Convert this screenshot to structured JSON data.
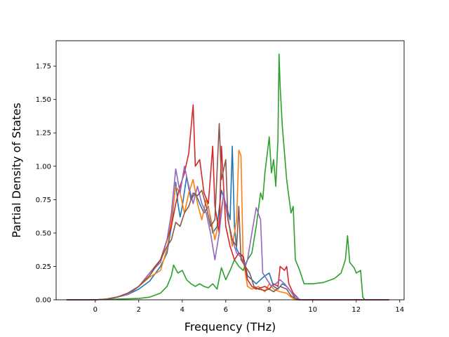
{
  "chart_data": {
    "type": "line",
    "title": "",
    "xlabel": "Frequency (THz)",
    "ylabel": "Partial Density of States",
    "xlim": [
      -1.8,
      14.2
    ],
    "ylim": [
      0,
      1.94
    ],
    "xticks": [
      0,
      2,
      4,
      6,
      8,
      10,
      12,
      14
    ],
    "yticks": [
      0.0,
      0.25,
      0.5,
      0.75,
      1.0,
      1.25,
      1.5,
      1.75
    ],
    "xtick_labels": [
      "0",
      "2",
      "4",
      "6",
      "8",
      "10",
      "12",
      "14"
    ],
    "ytick_labels": [
      "0.00",
      "0.25",
      "0.50",
      "0.75",
      "1.00",
      "1.25",
      "1.50",
      "1.75"
    ],
    "grid": false,
    "legend": "none",
    "series": [
      {
        "color": "#1f77b4",
        "points": [
          [
            -1.3,
            0
          ],
          [
            0,
            0
          ],
          [
            0.5,
            0.005
          ],
          [
            1,
            0.02
          ],
          [
            1.5,
            0.04
          ],
          [
            2,
            0.08
          ],
          [
            2.5,
            0.14
          ],
          [
            3,
            0.25
          ],
          [
            3.3,
            0.35
          ],
          [
            3.5,
            0.55
          ],
          [
            3.7,
            0.88
          ],
          [
            3.8,
            0.72
          ],
          [
            3.9,
            0.62
          ],
          [
            4,
            0.7
          ],
          [
            4.2,
            0.92
          ],
          [
            4.4,
            0.75
          ],
          [
            4.6,
            0.8
          ],
          [
            4.8,
            0.72
          ],
          [
            5,
            0.65
          ],
          [
            5.2,
            0.7
          ],
          [
            5.4,
            0.5
          ],
          [
            5.6,
            0.55
          ],
          [
            5.8,
            0.82
          ],
          [
            6,
            0.72
          ],
          [
            6.2,
            0.6
          ],
          [
            6.3,
            1.15
          ],
          [
            6.4,
            0.55
          ],
          [
            6.5,
            0.38
          ],
          [
            6.6,
            0.35
          ],
          [
            6.8,
            0.33
          ],
          [
            7,
            0.18
          ],
          [
            7.2,
            0.15
          ],
          [
            7.4,
            0.12
          ],
          [
            7.6,
            0.15
          ],
          [
            7.8,
            0.18
          ],
          [
            8,
            0.2
          ],
          [
            8.2,
            0.1
          ],
          [
            8.4,
            0.08
          ],
          [
            8.6,
            0.12
          ],
          [
            8.8,
            0.1
          ],
          [
            9,
            0.06
          ],
          [
            9.2,
            0.01
          ],
          [
            9.5,
            0
          ],
          [
            13.5,
            0
          ]
        ]
      },
      {
        "color": "#ff7f0e",
        "points": [
          [
            -1.3,
            0
          ],
          [
            0,
            0
          ],
          [
            0.5,
            0.005
          ],
          [
            1,
            0.02
          ],
          [
            1.5,
            0.04
          ],
          [
            2,
            0.1
          ],
          [
            2.5,
            0.17
          ],
          [
            3,
            0.22
          ],
          [
            3.3,
            0.38
          ],
          [
            3.5,
            0.6
          ],
          [
            3.7,
            0.85
          ],
          [
            3.9,
            0.8
          ],
          [
            4.1,
            0.65
          ],
          [
            4.3,
            0.8
          ],
          [
            4.5,
            0.9
          ],
          [
            4.7,
            0.72
          ],
          [
            4.9,
            0.6
          ],
          [
            5.1,
            0.75
          ],
          [
            5.3,
            0.62
          ],
          [
            5.5,
            0.45
          ],
          [
            5.7,
            0.6
          ],
          [
            5.9,
            0.78
          ],
          [
            6.1,
            0.62
          ],
          [
            6.3,
            0.4
          ],
          [
            6.5,
            0.6
          ],
          [
            6.6,
            1.12
          ],
          [
            6.7,
            1.08
          ],
          [
            6.8,
            0.3
          ],
          [
            7,
            0.1
          ],
          [
            7.2,
            0.08
          ],
          [
            7.5,
            0.1
          ],
          [
            7.8,
            0.06
          ],
          [
            8,
            0.12
          ],
          [
            8.2,
            0.08
          ],
          [
            8.5,
            0.06
          ],
          [
            8.8,
            0.05
          ],
          [
            9,
            0.02
          ],
          [
            9.2,
            0
          ],
          [
            13.5,
            0
          ]
        ]
      },
      {
        "color": "#2ca02c",
        "points": [
          [
            -1.3,
            0
          ],
          [
            0,
            0
          ],
          [
            1,
            0.005
          ],
          [
            2,
            0.01
          ],
          [
            2.5,
            0.02
          ],
          [
            3,
            0.05
          ],
          [
            3.3,
            0.1
          ],
          [
            3.5,
            0.18
          ],
          [
            3.6,
            0.26
          ],
          [
            3.8,
            0.2
          ],
          [
            4,
            0.22
          ],
          [
            4.2,
            0.15
          ],
          [
            4.4,
            0.12
          ],
          [
            4.6,
            0.1
          ],
          [
            4.8,
            0.12
          ],
          [
            5,
            0.1
          ],
          [
            5.2,
            0.09
          ],
          [
            5.4,
            0.12
          ],
          [
            5.6,
            0.08
          ],
          [
            5.8,
            0.24
          ],
          [
            6,
            0.15
          ],
          [
            6.2,
            0.22
          ],
          [
            6.4,
            0.3
          ],
          [
            6.6,
            0.25
          ],
          [
            6.8,
            0.22
          ],
          [
            7,
            0.3
          ],
          [
            7.2,
            0.35
          ],
          [
            7.4,
            0.55
          ],
          [
            7.6,
            0.8
          ],
          [
            7.7,
            0.75
          ],
          [
            7.8,
            0.95
          ],
          [
            8,
            1.22
          ],
          [
            8.1,
            0.95
          ],
          [
            8.2,
            1.05
          ],
          [
            8.3,
            0.85
          ],
          [
            8.4,
            1.2
          ],
          [
            8.45,
            1.84
          ],
          [
            8.5,
            1.6
          ],
          [
            8.6,
            1.3
          ],
          [
            8.8,
            0.9
          ],
          [
            9,
            0.65
          ],
          [
            9.1,
            0.7
          ],
          [
            9.2,
            0.3
          ],
          [
            9.4,
            0.22
          ],
          [
            9.6,
            0.12
          ],
          [
            10,
            0.12
          ],
          [
            10.5,
            0.13
          ],
          [
            11,
            0.16
          ],
          [
            11.3,
            0.2
          ],
          [
            11.5,
            0.3
          ],
          [
            11.6,
            0.48
          ],
          [
            11.7,
            0.28
          ],
          [
            11.9,
            0.24
          ],
          [
            12,
            0.2
          ],
          [
            12.2,
            0.22
          ],
          [
            12.3,
            0.02
          ],
          [
            12.4,
            0
          ]
        ]
      },
      {
        "color": "#d62728",
        "points": [
          [
            -1.3,
            0
          ],
          [
            0,
            0
          ],
          [
            0.5,
            0.005
          ],
          [
            1,
            0.02
          ],
          [
            1.5,
            0.05
          ],
          [
            2,
            0.1
          ],
          [
            2.5,
            0.2
          ],
          [
            3,
            0.3
          ],
          [
            3.3,
            0.45
          ],
          [
            3.5,
            0.55
          ],
          [
            3.7,
            0.72
          ],
          [
            3.9,
            0.85
          ],
          [
            4.1,
            0.95
          ],
          [
            4.3,
            1.1
          ],
          [
            4.5,
            1.46
          ],
          [
            4.6,
            1.0
          ],
          [
            4.8,
            1.05
          ],
          [
            5,
            0.8
          ],
          [
            5.2,
            0.72
          ],
          [
            5.4,
            1.15
          ],
          [
            5.5,
            0.7
          ],
          [
            5.7,
            0.5
          ],
          [
            5.8,
            1.15
          ],
          [
            6,
            0.55
          ],
          [
            6.2,
            0.4
          ],
          [
            6.4,
            0.3
          ],
          [
            6.6,
            0.35
          ],
          [
            6.8,
            0.32
          ],
          [
            7,
            0.15
          ],
          [
            7.2,
            0.1
          ],
          [
            7.4,
            0.08
          ],
          [
            7.6,
            0.09
          ],
          [
            7.8,
            0.1
          ],
          [
            8,
            0.08
          ],
          [
            8.2,
            0.12
          ],
          [
            8.4,
            0.1
          ],
          [
            8.5,
            0.25
          ],
          [
            8.7,
            0.22
          ],
          [
            8.8,
            0.25
          ],
          [
            8.9,
            0.12
          ],
          [
            9.1,
            0.05
          ],
          [
            9.4,
            0
          ],
          [
            13.5,
            0
          ]
        ]
      },
      {
        "color": "#9467bd",
        "points": [
          [
            -1.3,
            0
          ],
          [
            0,
            0
          ],
          [
            0.5,
            0.005
          ],
          [
            1,
            0.02
          ],
          [
            1.5,
            0.04
          ],
          [
            2,
            0.1
          ],
          [
            2.5,
            0.2
          ],
          [
            3,
            0.28
          ],
          [
            3.3,
            0.45
          ],
          [
            3.5,
            0.65
          ],
          [
            3.7,
            0.98
          ],
          [
            3.9,
            0.8
          ],
          [
            4.1,
            1.0
          ],
          [
            4.3,
            0.85
          ],
          [
            4.5,
            0.72
          ],
          [
            4.7,
            0.85
          ],
          [
            4.9,
            0.72
          ],
          [
            5.1,
            0.65
          ],
          [
            5.3,
            0.5
          ],
          [
            5.5,
            0.3
          ],
          [
            5.7,
            0.5
          ],
          [
            5.9,
            0.8
          ],
          [
            6.1,
            0.6
          ],
          [
            6.3,
            0.45
          ],
          [
            6.5,
            0.35
          ],
          [
            6.7,
            0.32
          ],
          [
            6.9,
            0.25
          ],
          [
            7,
            0.3
          ],
          [
            7.2,
            0.5
          ],
          [
            7.4,
            0.69
          ],
          [
            7.6,
            0.6
          ],
          [
            7.7,
            0.2
          ],
          [
            7.9,
            0.15
          ],
          [
            8.1,
            0.1
          ],
          [
            8.3,
            0.12
          ],
          [
            8.5,
            0.15
          ],
          [
            8.7,
            0.12
          ],
          [
            8.9,
            0.08
          ],
          [
            9.1,
            0.04
          ],
          [
            9.4,
            0
          ],
          [
            13.5,
            0
          ]
        ]
      },
      {
        "color": "#8c564b",
        "points": [
          [
            -1.3,
            0
          ],
          [
            0,
            0
          ],
          [
            0.5,
            0.005
          ],
          [
            1,
            0.02
          ],
          [
            1.5,
            0.05
          ],
          [
            2,
            0.1
          ],
          [
            2.5,
            0.18
          ],
          [
            3,
            0.3
          ],
          [
            3.3,
            0.4
          ],
          [
            3.5,
            0.45
          ],
          [
            3.7,
            0.58
          ],
          [
            3.9,
            0.55
          ],
          [
            4.1,
            0.65
          ],
          [
            4.3,
            0.7
          ],
          [
            4.5,
            0.8
          ],
          [
            4.7,
            0.78
          ],
          [
            4.9,
            0.82
          ],
          [
            5.1,
            0.7
          ],
          [
            5.3,
            0.55
          ],
          [
            5.5,
            0.6
          ],
          [
            5.7,
            1.32
          ],
          [
            5.8,
            0.9
          ],
          [
            6,
            1.05
          ],
          [
            6.1,
            0.6
          ],
          [
            6.3,
            0.45
          ],
          [
            6.5,
            0.4
          ],
          [
            6.6,
            0.7
          ],
          [
            6.7,
            0.3
          ],
          [
            6.9,
            0.25
          ],
          [
            7.1,
            0.2
          ],
          [
            7.3,
            0.1
          ],
          [
            7.5,
            0.08
          ],
          [
            7.8,
            0.07
          ],
          [
            8,
            0.08
          ],
          [
            8.2,
            0.06
          ],
          [
            8.5,
            0.1
          ],
          [
            8.8,
            0.08
          ],
          [
            9,
            0.03
          ],
          [
            9.3,
            0
          ],
          [
            13.5,
            0
          ]
        ]
      }
    ]
  }
}
